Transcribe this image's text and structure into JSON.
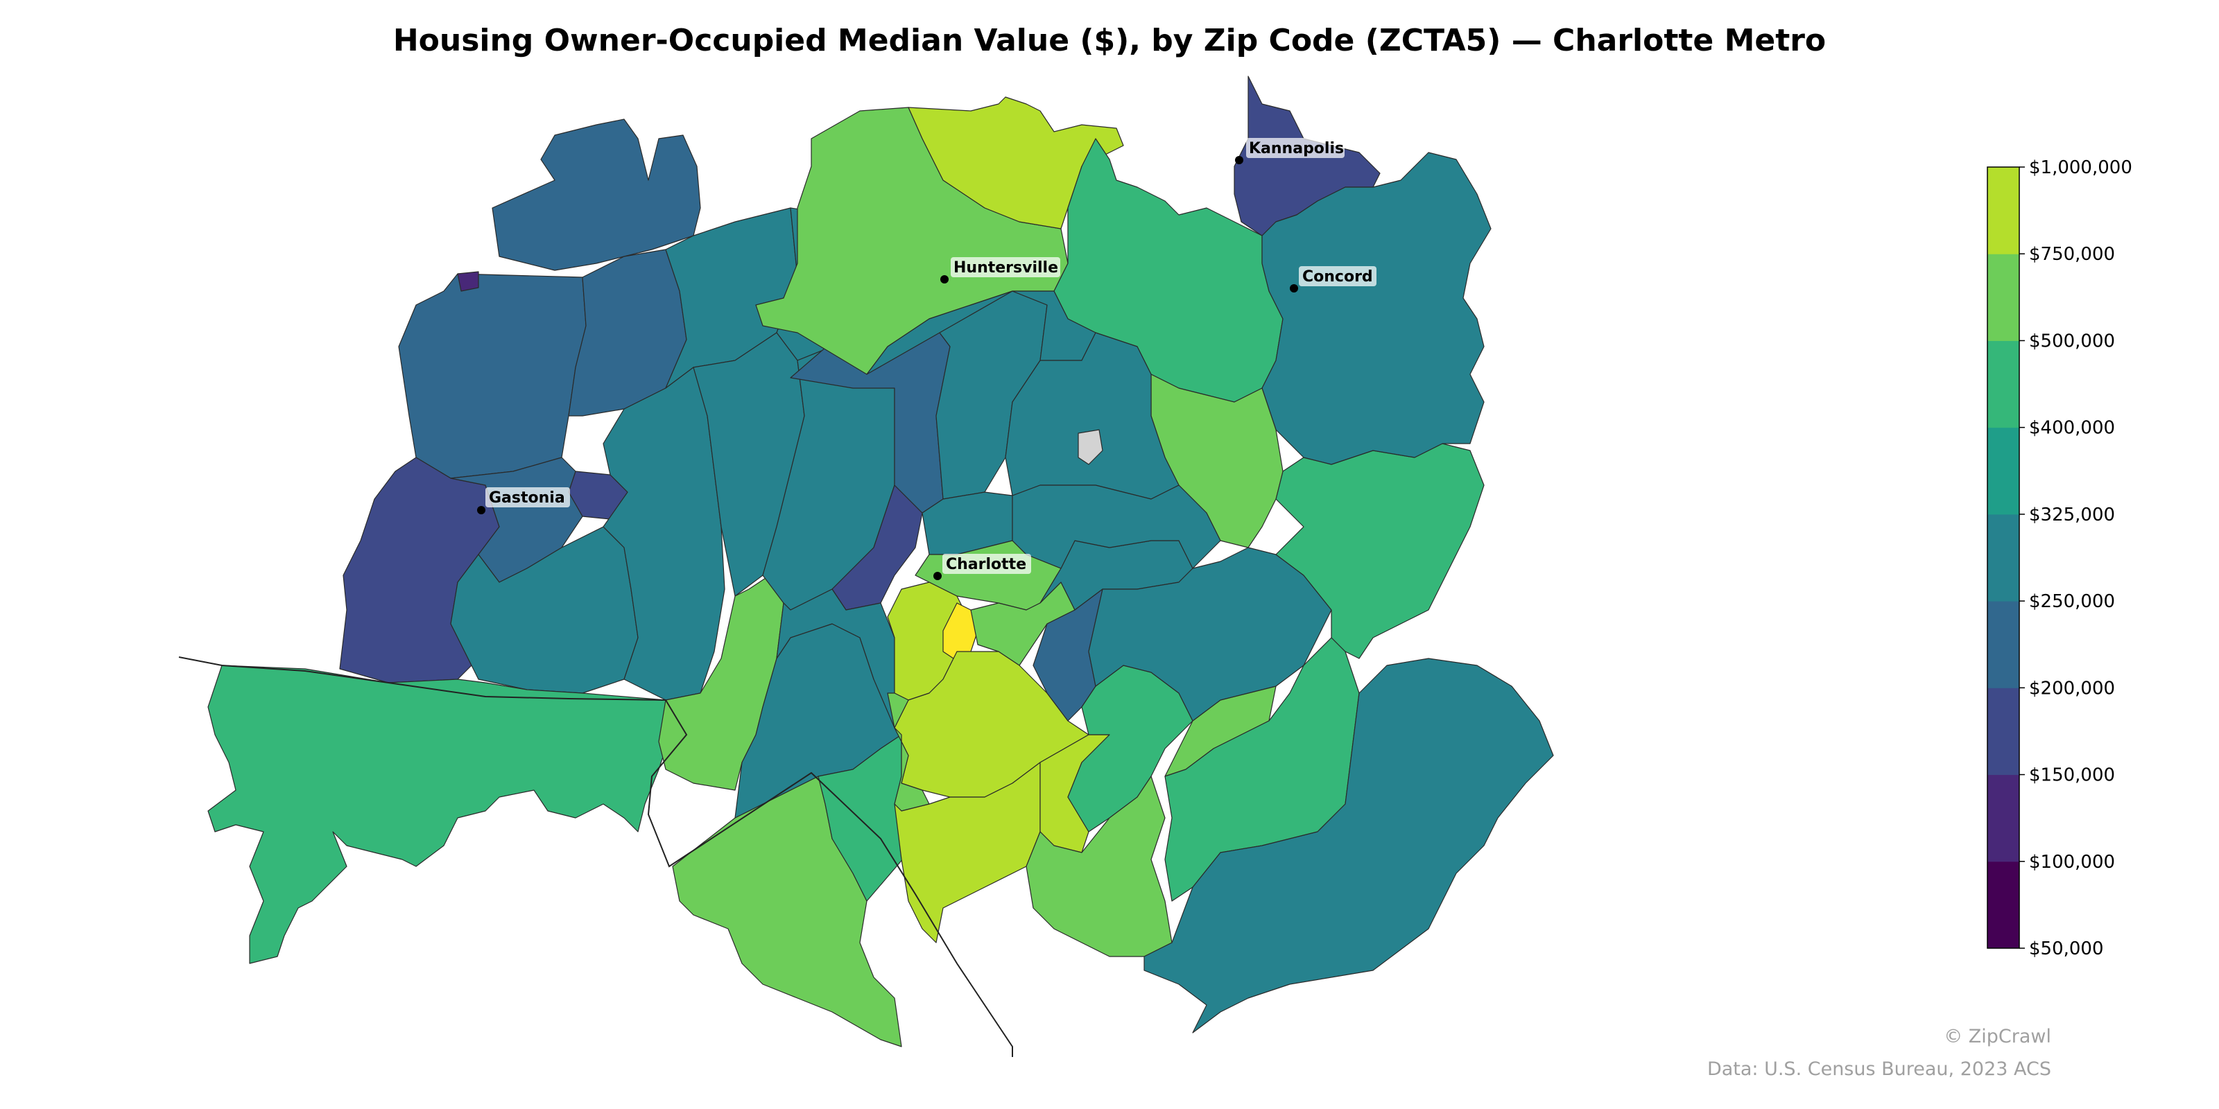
{
  "title": "Housing Owner-Occupied Median Value ($), by Zip Code (ZCTA5) — Charlotte Metro",
  "cities": [
    {
      "name": "Kannapolis"
    },
    {
      "name": "Huntersville"
    },
    {
      "name": "Concord"
    },
    {
      "name": "Gastonia"
    },
    {
      "name": "Charlotte"
    }
  ],
  "legend": {
    "labels": [
      "$50,000",
      "$100,000",
      "$150,000",
      "$200,000",
      "$250,000",
      "$325,000",
      "$400,000",
      "$500,000",
      "$750,000",
      "$1,000,000"
    ],
    "colors": [
      "#440154",
      "#482878",
      "#3e4a89",
      "#31688e",
      "#26828e",
      "#1f9e89",
      "#35b779",
      "#6dcd59",
      "#b4de2c",
      "#fde725"
    ]
  },
  "colors": {
    "no_data": "#d3d3d3",
    "credit_text": "#a0a0a0"
  },
  "credits": {
    "copyright": "© ZipCrawl",
    "source": "Data: U.S. Census Bureau, 2023 ACS"
  }
}
